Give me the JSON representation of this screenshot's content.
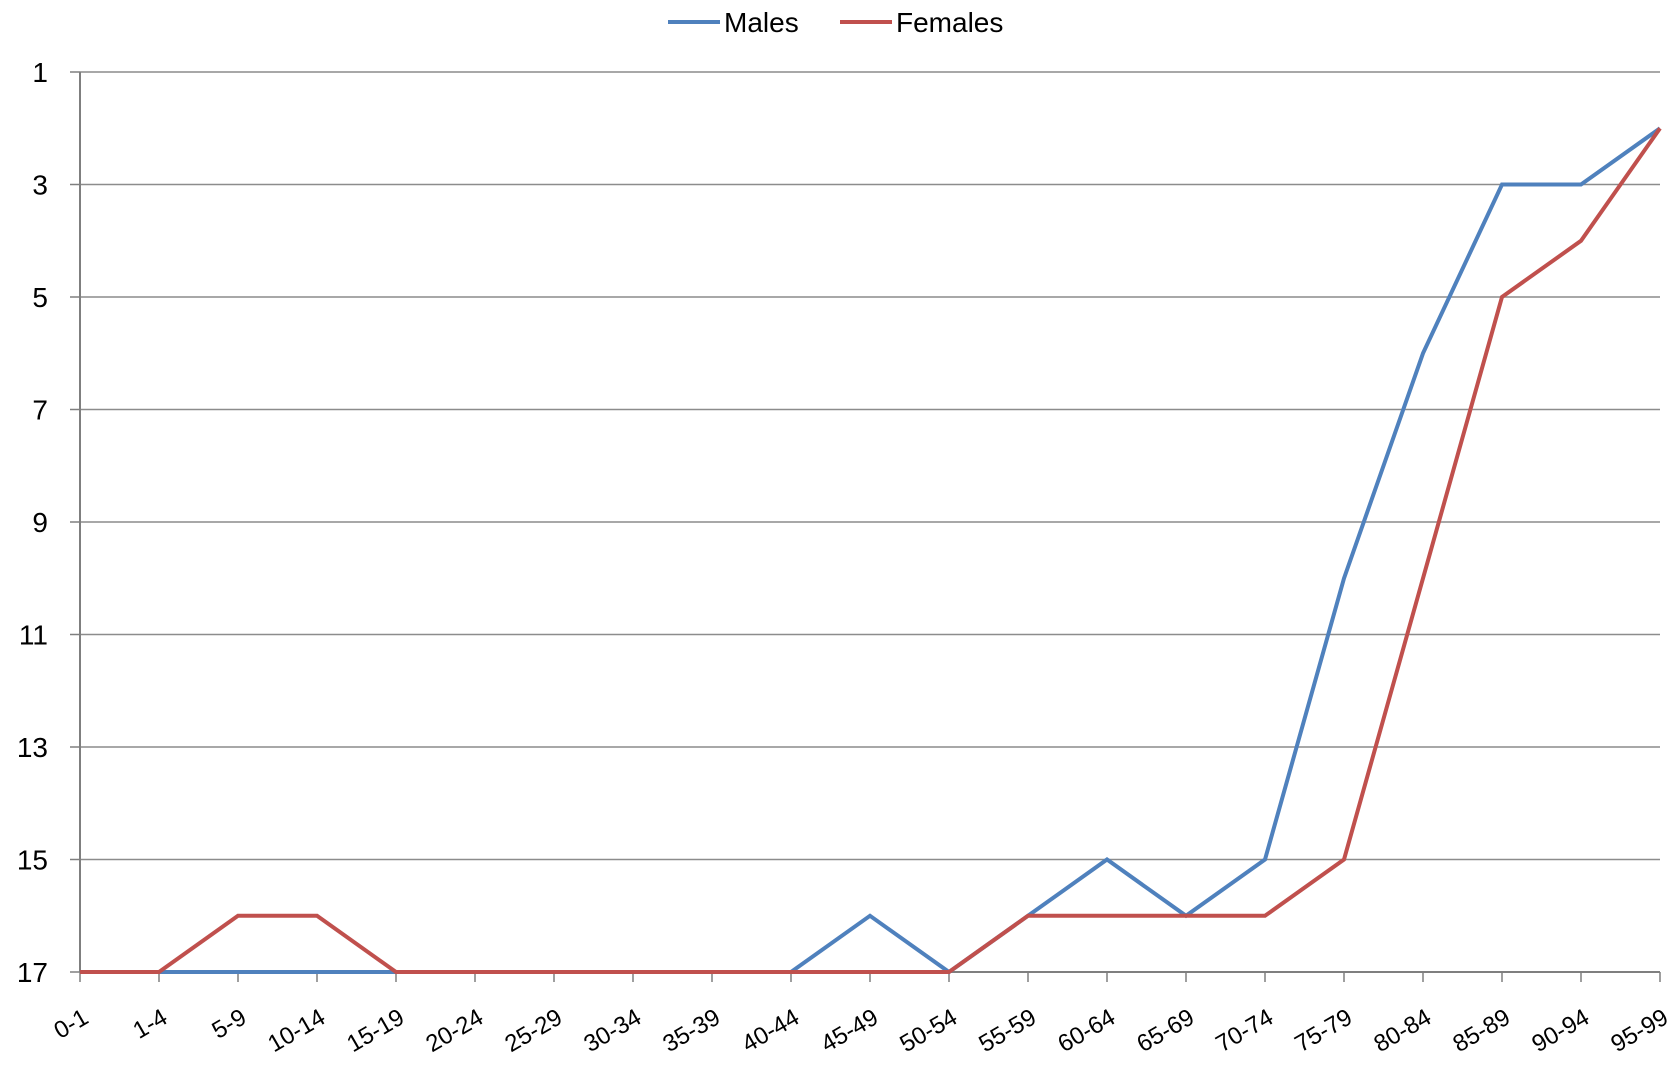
{
  "chart_data": {
    "type": "line",
    "title": "",
    "xlabel": "",
    "ylabel": "",
    "categories": [
      "0-1",
      "1-4",
      "5-9",
      "10-14",
      "15-19",
      "20-24",
      "25-29",
      "30-34",
      "35-39",
      "40-44",
      "45-49",
      "50-54",
      "55-59",
      "60-64",
      "65-69",
      "70-74",
      "75-79",
      "80-84",
      "85-89",
      "90-94",
      "95-99"
    ],
    "ylim": [
      1,
      17
    ],
    "y_reversed": true,
    "y_ticks": [
      1,
      3,
      5,
      7,
      9,
      11,
      13,
      15,
      17
    ],
    "grid": true,
    "legend_position": "top-center",
    "series": [
      {
        "name": "Males",
        "color": "#4F81BD",
        "values": [
          17,
          17,
          17,
          17,
          17,
          17,
          17,
          17,
          17,
          17,
          16,
          17,
          16,
          15,
          16,
          15,
          10,
          6,
          3,
          3,
          2
        ]
      },
      {
        "name": "Females",
        "color": "#C0504D",
        "values": [
          17,
          17,
          16,
          16,
          17,
          17,
          17,
          17,
          17,
          17,
          17,
          17,
          16,
          16,
          16,
          16,
          15,
          10,
          5,
          4,
          2
        ]
      }
    ]
  }
}
